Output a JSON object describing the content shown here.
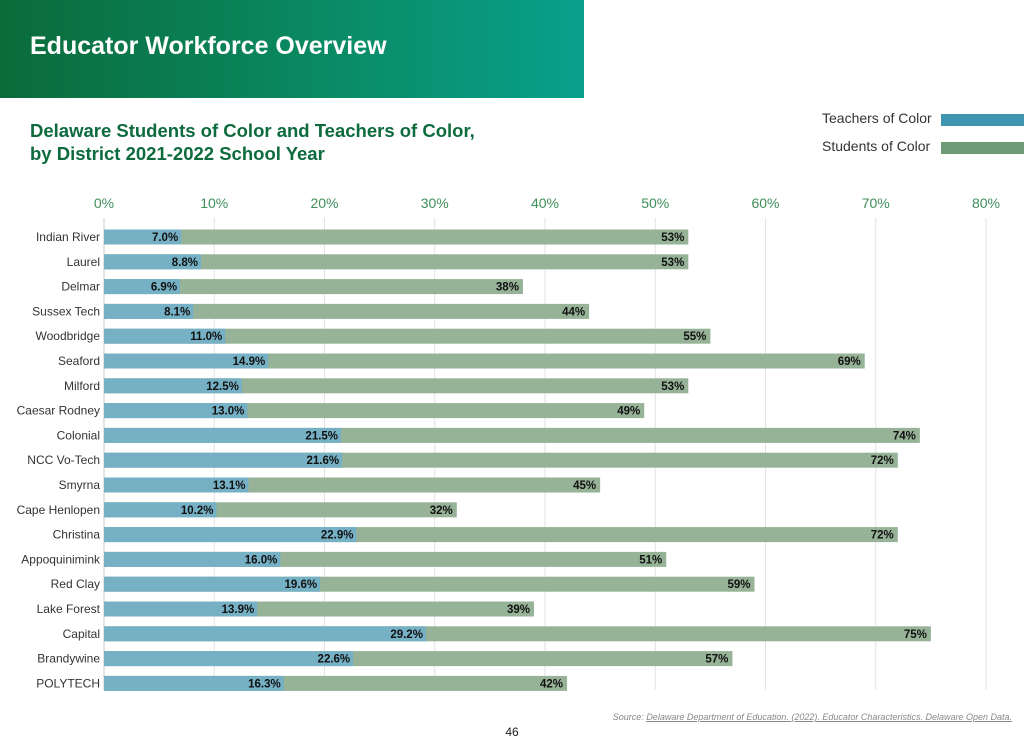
{
  "header": {
    "title": "Educator Workforce Overview"
  },
  "chart_data": {
    "type": "bar",
    "orientation": "horizontal",
    "title_lines": [
      "Delaware Students of Color and Teachers of Color,",
      "by District 2021-2022 School Year"
    ],
    "xlim": [
      0,
      80
    ],
    "x_ticks": [
      "0%",
      "10%",
      "20%",
      "30%",
      "40%",
      "50%",
      "60%",
      "70%",
      "80%"
    ],
    "grid": true,
    "legend_position": "top-right",
    "categories": [
      "Indian River",
      "Laurel",
      "Delmar",
      "Sussex Tech",
      "Woodbridge",
      "Seaford",
      "Milford",
      "Caesar Rodney",
      "Colonial",
      "NCC Vo-Tech",
      "Smyrna",
      "Cape Henlopen",
      "Christina",
      "Appoquinimink",
      "Red Clay",
      "Lake Forest",
      "Capital",
      "Brandywine",
      "POLYTECH"
    ],
    "series": [
      {
        "name": "Students of Color",
        "color": "#96b297",
        "values": [
          53,
          53,
          38,
          44,
          55,
          69,
          53,
          49,
          74,
          72,
          45,
          32,
          72,
          51,
          59,
          39,
          75,
          57,
          42
        ],
        "labels": [
          "53%",
          "53%",
          "38%",
          "44%",
          "55%",
          "69%",
          "53%",
          "49%",
          "74%",
          "72%",
          "45%",
          "32%",
          "72%",
          "51%",
          "59%",
          "39%",
          "75%",
          "57%",
          "42%"
        ]
      },
      {
        "name": "Teachers of Color",
        "color": "#75b0c5",
        "values": [
          7.0,
          8.8,
          6.9,
          8.1,
          11.0,
          14.9,
          12.5,
          13.0,
          21.5,
          21.6,
          13.1,
          10.2,
          22.9,
          16.0,
          19.6,
          13.9,
          29.2,
          22.6,
          16.3
        ],
        "labels": [
          "7.0%",
          "8.8%",
          "6.9%",
          "8.1%",
          "11.0%",
          "14.9%",
          "12.5%",
          "13.0%",
          "21.5%",
          "21.6%",
          "13.1%",
          "10.2%",
          "22.9%",
          "16.0%",
          "19.6%",
          "13.9%",
          "29.2%",
          "22.6%",
          "16.3%"
        ]
      }
    ]
  },
  "legend": [
    {
      "label": "Teachers of Color",
      "color": "#3f95ae"
    },
    {
      "label": "Students of Color",
      "color": "#6e9a76"
    }
  ],
  "colors": {
    "accent": "#0d6b3d",
    "axis_text": "#3f8f5a"
  },
  "footer": {
    "source_prefix": "Source:",
    "source_link": "Delaware Department of Education. (2022). Educator Characteristics. Delaware Open Data.",
    "page_number": "46"
  }
}
